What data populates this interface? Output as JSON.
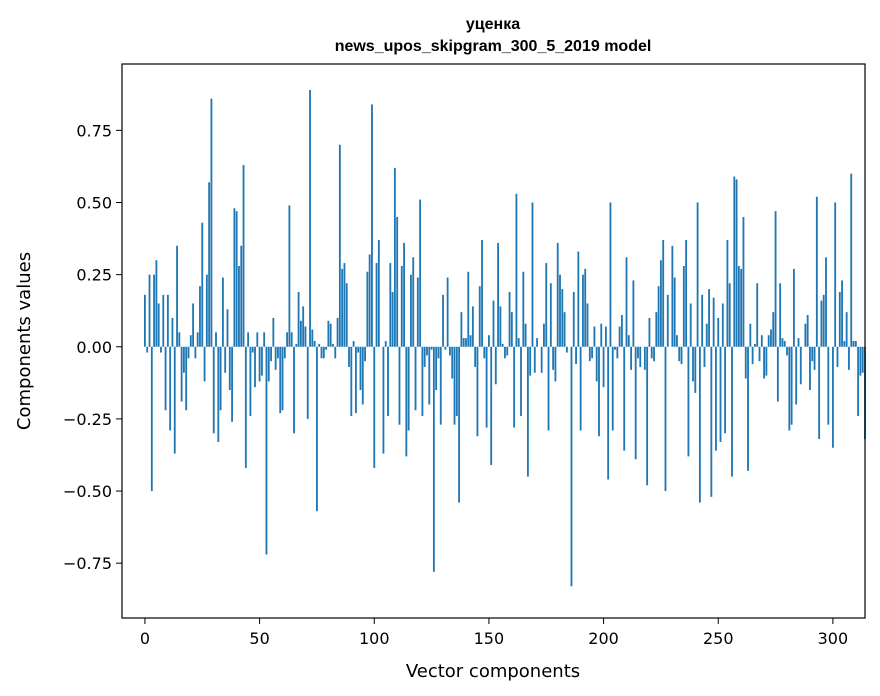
{
  "chart_data": {
    "type": "bar",
    "title": "уценка",
    "subtitle": "news_upos_skipgram_300_5_2019 model",
    "xlabel": "Vector components",
    "ylabel": "Components values",
    "xlim": [
      -10,
      314
    ],
    "ylim": [
      -0.94,
      0.98
    ],
    "xticks": [
      0,
      50,
      100,
      150,
      200,
      250,
      300
    ],
    "yticks": [
      -0.75,
      -0.5,
      -0.25,
      0.0,
      0.25,
      0.5,
      0.75
    ],
    "ytick_labels": [
      "−0.75",
      "−0.50",
      "−0.25",
      "0.00",
      "0.25",
      "0.50",
      "0.75"
    ],
    "bar_color": "#1f77b4",
    "values": [
      0.18,
      -0.02,
      0.25,
      -0.5,
      0.25,
      0.3,
      0.15,
      -0.02,
      0.18,
      -0.22,
      0.18,
      -0.29,
      0.1,
      -0.37,
      0.35,
      0.05,
      -0.19,
      -0.09,
      -0.22,
      -0.04,
      0.04,
      0.15,
      -0.04,
      0.05,
      0.21,
      0.43,
      -0.12,
      0.25,
      0.57,
      0.86,
      -0.3,
      0.05,
      -0.33,
      -0.22,
      0.24,
      -0.09,
      0.13,
      -0.15,
      -0.26,
      0.48,
      0.47,
      0.28,
      0.35,
      0.63,
      -0.42,
      0.05,
      -0.24,
      -0.02,
      -0.14,
      0.05,
      -0.12,
      -0.1,
      0.05,
      -0.72,
      -0.12,
      -0.05,
      0.1,
      -0.08,
      -0.04,
      -0.23,
      -0.22,
      -0.04,
      0.05,
      0.49,
      0.05,
      -0.3,
      0.01,
      0.19,
      0.09,
      0.14,
      0.07,
      -0.25,
      0.89,
      0.06,
      0.02,
      -0.57,
      0.01,
      -0.04,
      -0.04,
      -0.01,
      0.09,
      0.08,
      0.01,
      -0.04,
      0.1,
      0.7,
      0.27,
      0.29,
      0.22,
      -0.07,
      -0.24,
      0.02,
      -0.23,
      -0.02,
      -0.15,
      -0.2,
      -0.05,
      0.26,
      0.32,
      0.84,
      -0.42,
      0.29,
      0.37,
      0.0,
      -0.37,
      0.02,
      -0.24,
      0.29,
      0.19,
      0.62,
      0.45,
      -0.27,
      0.28,
      0.36,
      -0.38,
      -0.29,
      0.25,
      0.31,
      -0.22,
      0.24,
      0.51,
      -0.24,
      -0.07,
      -0.03,
      -0.2,
      -0.01,
      -0.78,
      -0.15,
      -0.04,
      -0.27,
      0.18,
      -0.01,
      0.24,
      -0.03,
      -0.11,
      -0.27,
      -0.24,
      -0.54,
      0.12,
      0.03,
      0.03,
      0.26,
      0.04,
      0.14,
      -0.07,
      -0.31,
      0.21,
      0.37,
      -0.04,
      -0.28,
      0.04,
      -0.41,
      0.16,
      -0.13,
      0.36,
      0.14,
      0.01,
      -0.04,
      -0.03,
      0.19,
      0.12,
      -0.28,
      0.53,
      0.03,
      -0.24,
      0.26,
      0.08,
      -0.45,
      -0.1,
      0.5,
      -0.09,
      0.03,
      0.0,
      -0.09,
      0.08,
      0.29,
      -0.29,
      0.22,
      -0.08,
      -0.12,
      0.36,
      0.25,
      0.2,
      0.12,
      -0.02,
      0.0,
      -0.83,
      0.19,
      -0.06,
      0.33,
      -0.29,
      0.25,
      0.27,
      0.15,
      -0.05,
      -0.04,
      0.07,
      -0.12,
      -0.31,
      0.08,
      -0.14,
      0.07,
      -0.46,
      0.5,
      -0.29,
      -0.01,
      -0.04,
      0.07,
      0.11,
      -0.36,
      0.31,
      0.04,
      -0.08,
      0.23,
      -0.39,
      -0.04,
      -0.07,
      0.0,
      -0.08,
      -0.48,
      0.1,
      -0.04,
      -0.05,
      0.12,
      0.21,
      0.3,
      0.37,
      -0.5,
      0.18,
      0.0,
      0.35,
      0.24,
      0.04,
      -0.05,
      -0.06,
      0.28,
      0.37,
      -0.38,
      0.15,
      -0.12,
      -0.16,
      0.5,
      -0.54,
      0.18,
      -0.07,
      0.08,
      0.2,
      -0.52,
      0.17,
      -0.36,
      0.1,
      -0.33,
      0.15,
      -0.3,
      0.37,
      0.22,
      -0.45,
      0.59,
      0.58,
      0.28,
      0.27,
      0.45,
      -0.11,
      -0.43,
      0.08,
      -0.06,
      0.01,
      0.22,
      -0.05,
      0.04,
      -0.11,
      -0.1,
      0.04,
      0.06,
      0.12,
      0.47,
      -0.19,
      0.22,
      0.03,
      0.02,
      -0.03,
      -0.29,
      -0.27,
      0.27,
      -0.2,
      0.03,
      -0.13,
      0.0,
      0.08,
      0.11,
      -0.15,
      -0.05,
      -0.08,
      0.52,
      -0.32,
      0.16,
      0.18,
      0.31,
      -0.27,
      0.0,
      -0.35,
      0.5,
      -0.07,
      0.19,
      0.23,
      0.02,
      0.12,
      -0.08,
      0.6,
      0.02,
      0.02,
      -0.24,
      -0.1,
      -0.09,
      -0.32
    ]
  }
}
